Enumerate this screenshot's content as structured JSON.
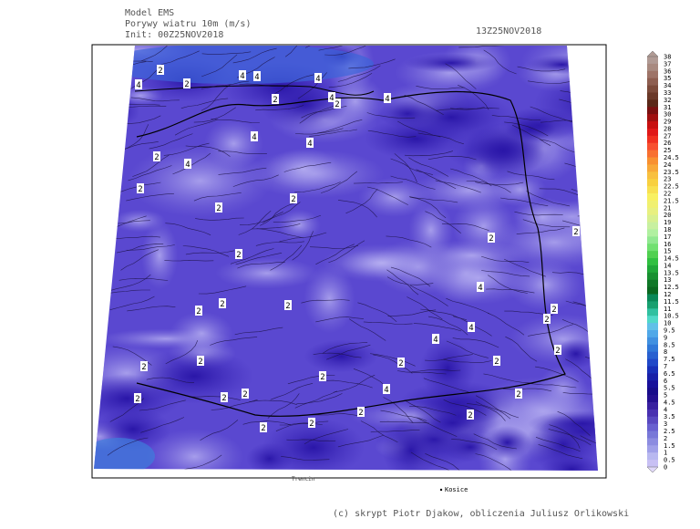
{
  "header": {
    "model": "Model EMS",
    "field": "Porywy wiatru 10m (m/s)",
    "init": "Init: 00Z25NOV2018",
    "valid": "13Z25NOV2018"
  },
  "colorbar": {
    "labels": [
      "38",
      "37",
      "36",
      "35",
      "34",
      "33",
      "32",
      "31",
      "30",
      "29",
      "28",
      "27",
      "26",
      "25",
      "24.5",
      "24",
      "23.5",
      "23",
      "22.5",
      "22",
      "21.5",
      "21",
      "20",
      "19",
      "18",
      "17",
      "16",
      "15",
      "14.5",
      "14",
      "13.5",
      "13",
      "12.5",
      "12",
      "11.5",
      "11",
      "10.5",
      "10",
      "9.5",
      "9",
      "8.5",
      "8",
      "7.5",
      "7",
      "6.5",
      "6",
      "5.5",
      "5",
      "4.5",
      "4",
      "3.5",
      "3",
      "2.5",
      "2",
      "1.5",
      "1",
      "0.5",
      "0"
    ]
  },
  "map": {
    "contour_labels": [
      "2",
      "4",
      "2",
      "4",
      "4",
      "4",
      "4",
      "2",
      "2",
      "4",
      "4",
      "4",
      "2",
      "4",
      "2",
      "2",
      "2",
      "2",
      "2",
      "2",
      "4",
      "2",
      "2",
      "2",
      "2",
      "2",
      "4",
      "4",
      "2",
      "2",
      "2",
      "2",
      "2",
      "2",
      "2",
      "2",
      "2",
      "2",
      "4",
      "2",
      "2",
      "2",
      "2"
    ],
    "places": [
      "Kosice",
      "Trencin"
    ]
  },
  "footer": {
    "credit": "(c) skrypt Piotr Djakow, obliczenia Juliusz Orlikowski"
  }
}
